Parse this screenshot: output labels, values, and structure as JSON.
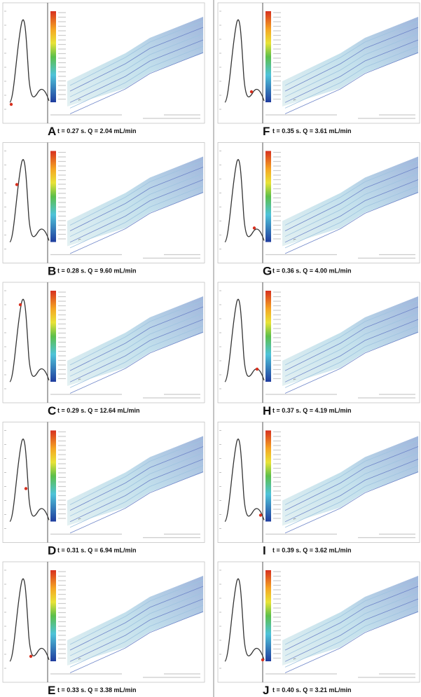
{
  "panels": [
    {
      "letter": "A",
      "caption": "t = 0.27 s.  Q = 2.04 mL/min"
    },
    {
      "letter": "B",
      "caption": "t = 0.28 s.  Q = 9.60 mL/min"
    },
    {
      "letter": "C",
      "caption": "t = 0.29 s.  Q = 12.64 mL/min"
    },
    {
      "letter": "D",
      "caption": "t = 0.31 s.  Q = 6.94 mL/min"
    },
    {
      "letter": "E",
      "caption": "t = 0.33 s.  Q = 3.38 mL/min"
    },
    {
      "letter": "F",
      "caption": "t = 0.35 s.  Q = 3.61 mL/min"
    },
    {
      "letter": "G",
      "caption": "t = 0.36 s.  Q = 4.00 mL/min"
    },
    {
      "letter": "H",
      "caption": "t = 0.37 s.  Q = 4.19 mL/min"
    },
    {
      "letter": "I",
      "caption": "t = 0.39 s.  Q = 3.62 mL/min"
    },
    {
      "letter": "J",
      "caption": "t = 0.40 s.  Q = 3.21 mL/min"
    }
  ]
}
